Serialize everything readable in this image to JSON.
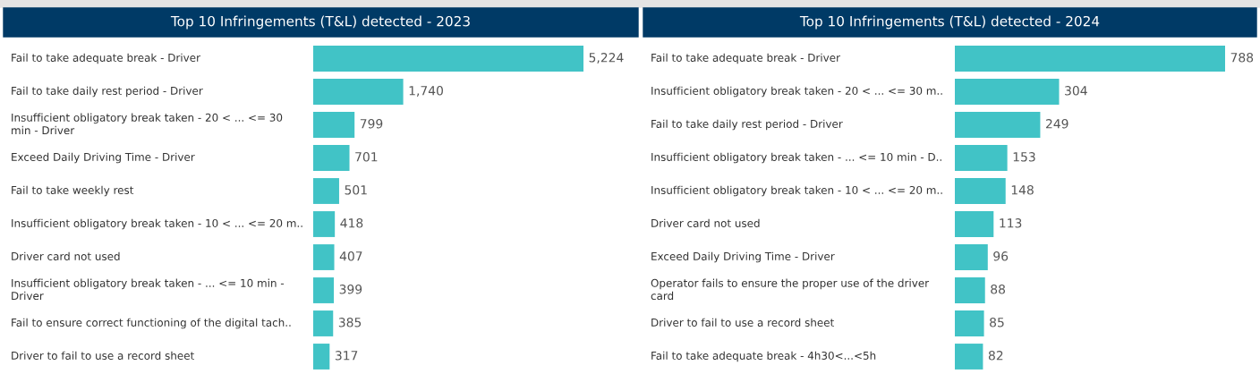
{
  "chart_data": [
    {
      "type": "bar",
      "orientation": "horizontal",
      "title": "Top 10 Infringements (T&L) detected - 2023",
      "color": "#41c3c6",
      "categories": [
        "Fail to take adequate break - Driver",
        "Fail to take daily rest period - Driver",
        "Insufficient obligatory break taken - 20 < ... <= 30\nmin - Driver",
        "Exceed Daily Driving Time - Driver",
        "Fail to take weekly rest",
        "Insufficient obligatory break taken - 10 < ... <= 20 m..",
        "Driver card not used",
        "Insufficient obligatory break taken - ... <= 10 min -\nDriver",
        "Fail to ensure correct functioning of the digital tach..",
        "Driver to fail to use a record sheet"
      ],
      "values": [
        5224,
        1740,
        799,
        701,
        501,
        418,
        407,
        399,
        385,
        317
      ],
      "value_labels": [
        "5,224",
        "1,740",
        "799",
        "701",
        "501",
        "418",
        "407",
        "399",
        "385",
        "317"
      ]
    },
    {
      "type": "bar",
      "orientation": "horizontal",
      "title": "Top 10 Infringements (T&L) detected - 2024",
      "color": "#41c3c6",
      "categories": [
        "Fail to take adequate break - Driver",
        "Insufficient obligatory break taken - 20 < ... <= 30 m..",
        "Fail to take daily rest period - Driver",
        "Insufficient obligatory break taken - ... <= 10 min - D..",
        "Insufficient obligatory break taken - 10 < ... <= 20 m..",
        "Driver card not used",
        "Exceed Daily Driving Time - Driver",
        "Operator fails to ensure the proper use of the driver\ncard",
        "Driver to fail to use a record sheet",
        "Fail to take adequate break - 4h30<...<5h"
      ],
      "values": [
        788,
        304,
        249,
        153,
        148,
        113,
        96,
        88,
        85,
        82
      ],
      "value_labels": [
        "788",
        "304",
        "249",
        "153",
        "148",
        "113",
        "96",
        "88",
        "85",
        "82"
      ]
    }
  ]
}
